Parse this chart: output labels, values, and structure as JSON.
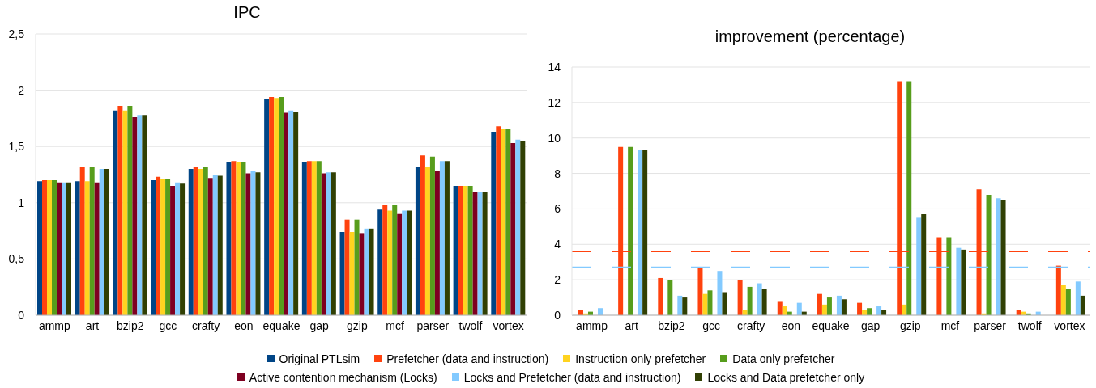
{
  "chart_data": [
    {
      "type": "bar",
      "title": "IPC",
      "categories": [
        "ammp",
        "art",
        "bzip2",
        "gcc",
        "crafty",
        "eon",
        "equake",
        "gap",
        "gzip",
        "mcf",
        "parser",
        "twolf",
        "vortex"
      ],
      "series": [
        {
          "name": "Original PTLsim",
          "color": "#004586",
          "values": [
            1.19,
            1.19,
            1.82,
            1.2,
            1.3,
            1.36,
            1.92,
            1.36,
            0.74,
            0.94,
            1.32,
            1.15,
            1.63
          ]
        },
        {
          "name": "Prefetcher (data and instruction)",
          "color": "#ff420e",
          "values": [
            1.2,
            1.32,
            1.86,
            1.23,
            1.32,
            1.37,
            1.94,
            1.37,
            0.85,
            0.98,
            1.42,
            1.15,
            1.68
          ]
        },
        {
          "name": "Instruction only prefetcher",
          "color": "#ffd320",
          "values": [
            1.2,
            1.19,
            1.82,
            1.21,
            1.3,
            1.36,
            1.93,
            1.37,
            0.74,
            0.93,
            1.32,
            1.15,
            1.66
          ]
        },
        {
          "name": "Data only prefetcher",
          "color": "#579d1c",
          "values": [
            1.2,
            1.32,
            1.86,
            1.21,
            1.32,
            1.36,
            1.94,
            1.37,
            0.85,
            0.98,
            1.41,
            1.15,
            1.66
          ]
        },
        {
          "name": "Active contention mechanism (Locks)",
          "color": "#7e0021",
          "values": [
            1.18,
            1.18,
            1.76,
            1.15,
            1.22,
            1.26,
            1.8,
            1.26,
            0.73,
            0.9,
            1.28,
            1.1,
            1.53
          ]
        },
        {
          "name": "Locks and Prefetcher (data and instruction)",
          "color": "#83caff",
          "values": [
            1.18,
            1.3,
            1.78,
            1.18,
            1.25,
            1.28,
            1.82,
            1.27,
            0.77,
            0.93,
            1.37,
            1.1,
            1.56
          ]
        },
        {
          "name": "Locks and Data prefetcher only",
          "color": "#314004",
          "values": [
            1.18,
            1.3,
            1.78,
            1.17,
            1.24,
            1.27,
            1.81,
            1.27,
            0.77,
            0.93,
            1.37,
            1.1,
            1.55
          ]
        }
      ],
      "ylim": [
        0,
        2.5
      ],
      "yticks": [
        0,
        {
          "value": 0.5,
          "label": "0,5"
        },
        1,
        {
          "value": 1.5,
          "label": "1,5"
        },
        2,
        {
          "value": 2.5,
          "label": "2,5"
        }
      ],
      "grid": "y",
      "legend": "bottom"
    },
    {
      "type": "bar",
      "title": "improvement (percentage)",
      "categories": [
        "ammp",
        "art",
        "bzip2",
        "gcc",
        "crafty",
        "eon",
        "equake",
        "gap",
        "gzip",
        "mcf",
        "parser",
        "twolf",
        "vortex"
      ],
      "series": [
        {
          "name": "Original PTLsim",
          "color": "#004586",
          "values": [
            null,
            null,
            null,
            null,
            null,
            null,
            null,
            null,
            null,
            null,
            null,
            null,
            null
          ]
        },
        {
          "name": "Prefetcher (data and instruction)",
          "color": "#ff420e",
          "values": [
            0.3,
            9.5,
            2.1,
            2.7,
            2.0,
            0.8,
            1.2,
            0.7,
            13.2,
            4.4,
            7.1,
            0.3,
            2.8
          ]
        },
        {
          "name": "Instruction only prefetcher",
          "color": "#ffd320",
          "values": [
            0.1,
            null,
            null,
            1.2,
            0.3,
            0.5,
            0.6,
            0.3,
            0.6,
            null,
            0.1,
            0.2,
            1.7
          ]
        },
        {
          "name": "Data only prefetcher",
          "color": "#579d1c",
          "values": [
            0.2,
            9.5,
            2.0,
            1.4,
            1.6,
            0.2,
            1.0,
            0.4,
            13.2,
            4.4,
            6.8,
            0.1,
            1.5
          ]
        },
        {
          "name": "Active contention mechanism (Locks)",
          "color": "#7e0021",
          "values": [
            null,
            null,
            null,
            null,
            null,
            null,
            null,
            null,
            null,
            null,
            null,
            null,
            null
          ]
        },
        {
          "name": "Locks and Prefetcher (data and instruction)",
          "color": "#83caff",
          "values": [
            0.4,
            9.3,
            1.1,
            2.5,
            1.8,
            0.7,
            1.1,
            0.5,
            5.5,
            3.8,
            6.6,
            0.2,
            1.9
          ]
        },
        {
          "name": "Locks and Data prefetcher only",
          "color": "#314004",
          "values": [
            null,
            9.3,
            1.0,
            1.3,
            1.5,
            0.2,
            0.9,
            0.3,
            5.7,
            3.7,
            6.5,
            null,
            1.1
          ]
        }
      ],
      "ylim": [
        0,
        14
      ],
      "yticks": [
        0,
        2,
        4,
        6,
        8,
        10,
        12,
        14
      ],
      "grid": "y",
      "ref_lines": [
        {
          "axis": "y",
          "value": 3.6,
          "color": "#ff420e",
          "line_style": "dashed"
        },
        {
          "axis": "y",
          "value": 2.7,
          "color": "#83caff",
          "line_style": "dashed"
        }
      ]
    }
  ]
}
